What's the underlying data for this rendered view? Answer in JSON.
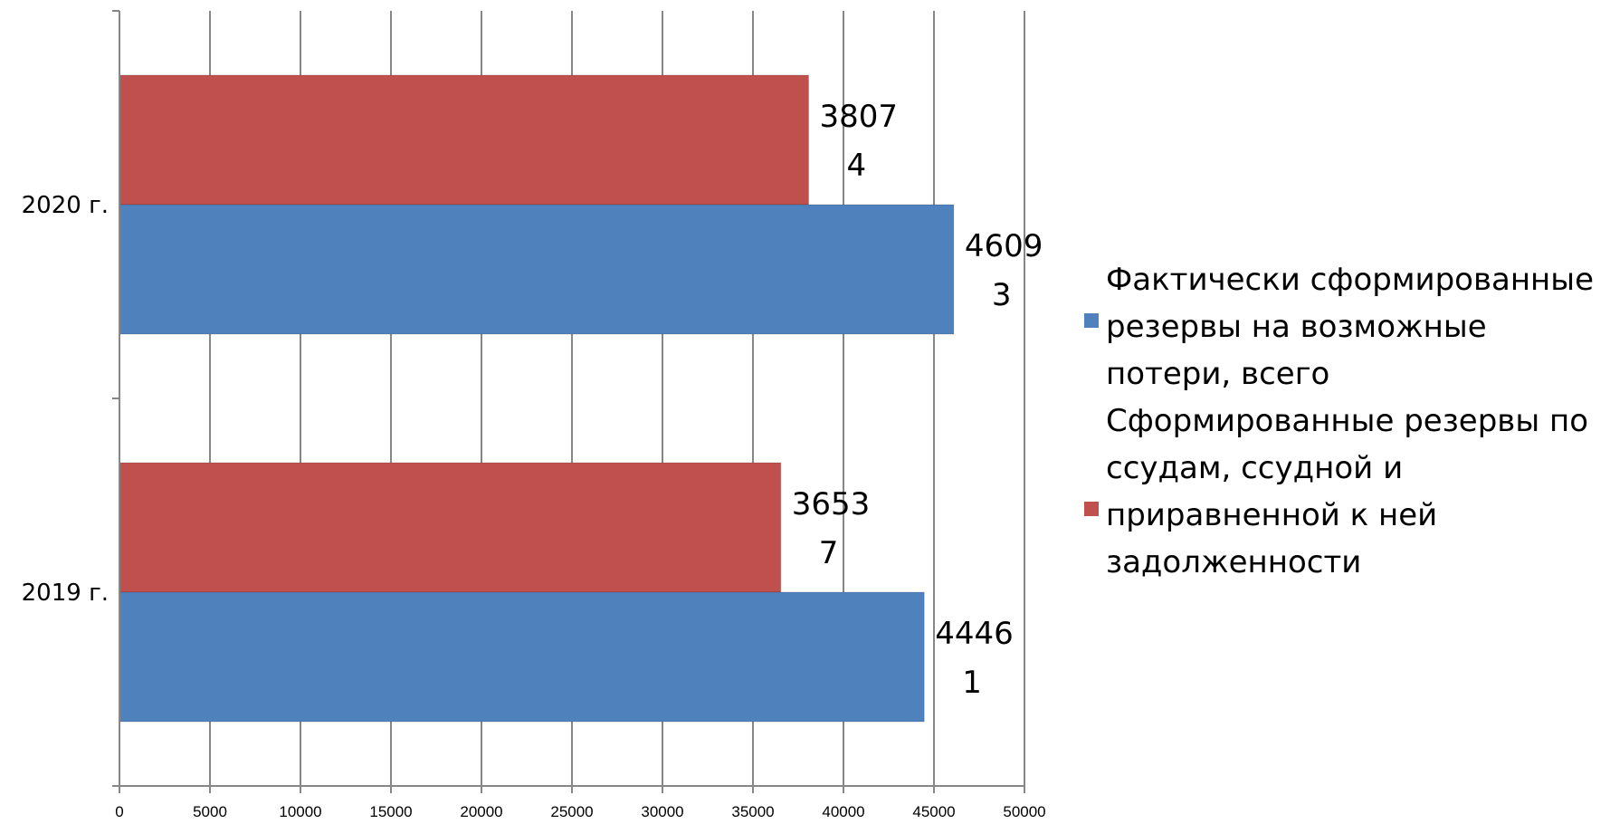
{
  "chart_data": {
    "type": "bar",
    "orientation": "horizontal",
    "categories": [
      "2019 г.",
      "2020 г."
    ],
    "series": [
      {
        "name": "Фактически сформированные резервы на возможные потери, всего",
        "legend_lines": [
          "Фактически сформированные",
          "резервы на возможные",
          "потери, всего"
        ],
        "color": "#4F81BD",
        "values": [
          44461,
          46093
        ],
        "labels": [
          [
            "4446",
            "1"
          ],
          [
            "4609",
            "3"
          ]
        ]
      },
      {
        "name": "Сформированные резервы по ссудам, ссудной и приравненной к ней задолженности",
        "legend_lines": [
          "Сформированные резервы по",
          "ссудам, ссудной и",
          "приравненной к ней",
          "задолженности"
        ],
        "color": "#C0504D",
        "values": [
          36537,
          38074
        ],
        "labels": [
          [
            "3653",
            "7"
          ],
          [
            "3807",
            "4"
          ]
        ]
      }
    ],
    "x_ticks": [
      "0",
      "5000",
      "10000",
      "15000",
      "20000",
      "25000",
      "30000",
      "35000",
      "40000",
      "45000",
      "50000"
    ],
    "xlim": [
      0,
      50000
    ],
    "grid": true,
    "legend_position": "right",
    "title": "",
    "xlabel": "",
    "ylabel": ""
  }
}
